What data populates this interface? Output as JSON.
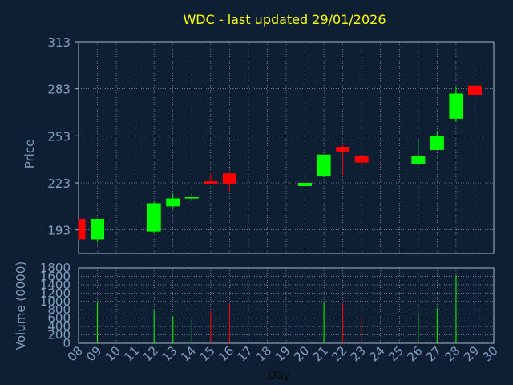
{
  "chart_data": [
    {
      "type": "candlestick",
      "title": "WDC - last updated 29/01/2026",
      "ylabel": "Price",
      "xlabel": "",
      "ylim": [
        178,
        313
      ],
      "yticks": [
        193,
        223,
        253,
        283,
        313
      ],
      "grid": true,
      "colors": {
        "up": "#00ff00",
        "down": "#ff0000",
        "title": "#ffff00",
        "axis_text": "#7fa0c0",
        "background": "#0f1f33"
      },
      "candles": [
        {
          "day": 8,
          "open": 200,
          "high": 200,
          "low": 187,
          "close": 187,
          "dir": "down"
        },
        {
          "day": 9,
          "open": 187,
          "high": 200,
          "low": 185,
          "close": 200,
          "dir": "up"
        },
        {
          "day": 12,
          "open": 192,
          "high": 211,
          "low": 191,
          "close": 210,
          "dir": "up"
        },
        {
          "day": 13,
          "open": 208,
          "high": 216,
          "low": 207,
          "close": 213,
          "dir": "up"
        },
        {
          "day": 14,
          "open": 213,
          "high": 216,
          "low": 211,
          "close": 214,
          "dir": "up"
        },
        {
          "day": 15,
          "open": 224,
          "high": 229,
          "low": 222,
          "close": 222,
          "dir": "down"
        },
        {
          "day": 16,
          "open": 229,
          "high": 230,
          "low": 217,
          "close": 222,
          "dir": "down"
        },
        {
          "day": 20,
          "open": 221,
          "high": 229,
          "low": 220,
          "close": 223,
          "dir": "up"
        },
        {
          "day": 21,
          "open": 227,
          "high": 241,
          "low": 227,
          "close": 241,
          "dir": "up"
        },
        {
          "day": 22,
          "open": 246,
          "high": 247,
          "low": 228,
          "close": 243,
          "dir": "down"
        },
        {
          "day": 23,
          "open": 240,
          "high": 241,
          "low": 234,
          "close": 236,
          "dir": "down"
        },
        {
          "day": 26,
          "open": 235,
          "high": 251,
          "low": 234,
          "close": 240,
          "dir": "up"
        },
        {
          "day": 27,
          "open": 244,
          "high": 256,
          "low": 244,
          "close": 253,
          "dir": "up"
        },
        {
          "day": 28,
          "open": 264,
          "high": 284,
          "low": 262,
          "close": 280,
          "dir": "up"
        },
        {
          "day": 29,
          "open": 285,
          "high": 285,
          "low": 270,
          "close": 279,
          "dir": "down"
        }
      ]
    },
    {
      "type": "bar",
      "xlabel": "Day",
      "ylabel": "Volume (0000)",
      "ylim": [
        0,
        1800
      ],
      "yticks": [
        0,
        200,
        400,
        600,
        800,
        1000,
        1200,
        1400,
        1600,
        1800
      ],
      "grid": true,
      "categories": [
        "08",
        "09",
        "10",
        "11",
        "12",
        "13",
        "14",
        "15",
        "16",
        "17",
        "18",
        "19",
        "20",
        "21",
        "22",
        "23",
        "24",
        "25",
        "26",
        "27",
        "28",
        "29",
        "30"
      ],
      "bars": [
        {
          "day": 9,
          "value": 1000,
          "dir": "up"
        },
        {
          "day": 12,
          "value": 780,
          "dir": "up"
        },
        {
          "day": 13,
          "value": 640,
          "dir": "up"
        },
        {
          "day": 14,
          "value": 560,
          "dir": "up"
        },
        {
          "day": 15,
          "value": 760,
          "dir": "down"
        },
        {
          "day": 16,
          "value": 960,
          "dir": "down"
        },
        {
          "day": 20,
          "value": 760,
          "dir": "up"
        },
        {
          "day": 21,
          "value": 1000,
          "dir": "up"
        },
        {
          "day": 22,
          "value": 960,
          "dir": "down"
        },
        {
          "day": 23,
          "value": 620,
          "dir": "down"
        },
        {
          "day": 26,
          "value": 740,
          "dir": "up"
        },
        {
          "day": 27,
          "value": 840,
          "dir": "up"
        },
        {
          "day": 28,
          "value": 1620,
          "dir": "up"
        },
        {
          "day": 29,
          "value": 1600,
          "dir": "down"
        }
      ]
    }
  ]
}
